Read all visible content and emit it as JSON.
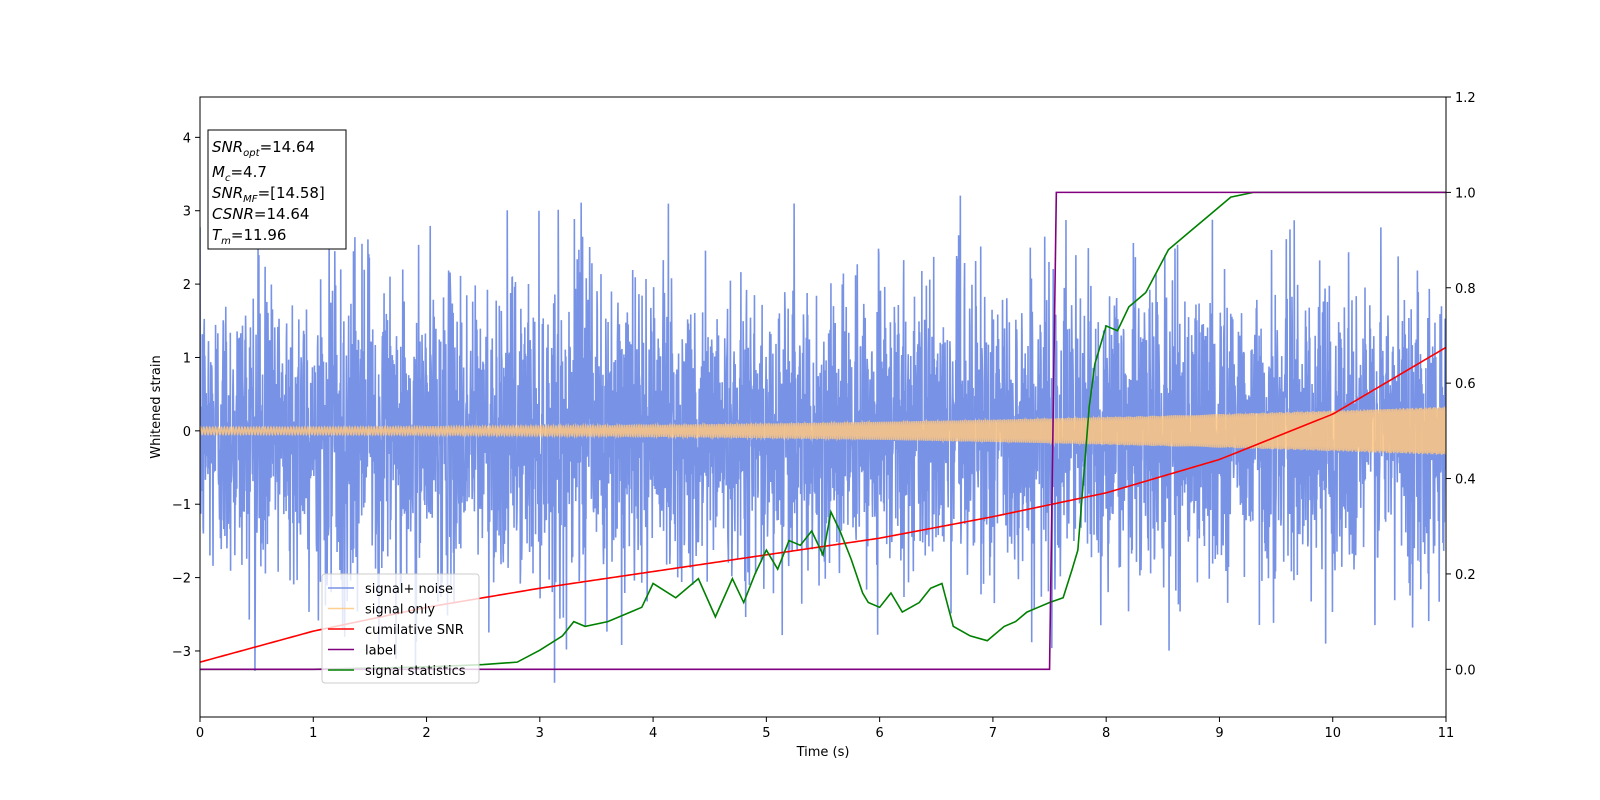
{
  "chart_data": {
    "type": "line",
    "xlabel": "Time (s)",
    "ylabel": "Whitened strain",
    "xlim": [
      0,
      11
    ],
    "ylim_left": [
      -3.9,
      4.55
    ],
    "ylim_right": [
      -0.1,
      1.2
    ],
    "x_ticks": [
      "0",
      "1",
      "2",
      "3",
      "4",
      "5",
      "6",
      "7",
      "8",
      "9",
      "10",
      "11"
    ],
    "y_ticks_left": [
      "−3",
      "−2",
      "−1",
      "0",
      "1",
      "2",
      "3",
      "4"
    ],
    "y_ticks_right": [
      "0.0",
      "0.2",
      "0.4",
      "0.6",
      "0.8",
      "1.0",
      "1.2"
    ],
    "grid": false,
    "legend_position": "lower-left",
    "annotation": [
      {
        "base": "SNR",
        "sub": "opt",
        "rest": "=14.64"
      },
      {
        "base": "M",
        "sub": "c",
        "rest": "=4.7"
      },
      {
        "base": "SNR",
        "sub": "MF",
        "rest": "=[14.58]"
      },
      {
        "base": "CSNR",
        "sub": "",
        "rest": "=14.64"
      },
      {
        "base": "T",
        "sub": "m",
        "rest": "=11.96"
      }
    ],
    "series": [
      {
        "name": "signal+ noise",
        "axis": "left",
        "color": "#7893e6",
        "description": "whitened noise, sigma about 1, range about -3.5 to 3.4"
      },
      {
        "name": "signal only",
        "axis": "left",
        "color": "#ffc77f",
        "amplitude_start": 0.05,
        "amplitude_end": 0.33
      },
      {
        "name": "cumilative SNR",
        "axis": "right",
        "color": "#ff0000",
        "x": [
          0,
          1,
          2,
          3,
          4,
          5,
          6,
          7,
          7.5,
          8,
          9,
          10,
          11
        ],
        "y": [
          0.015,
          0.08,
          0.13,
          0.17,
          0.205,
          0.24,
          0.275,
          0.32,
          0.345,
          0.37,
          0.44,
          0.535,
          0.675
        ]
      },
      {
        "name": "label",
        "axis": "right",
        "color": "#800080",
        "x": [
          0,
          7.5,
          7.56,
          11
        ],
        "y": [
          0.0,
          0.0,
          1.0,
          1.0
        ]
      },
      {
        "name": "signal statistics",
        "axis": "right",
        "color": "#008000",
        "x": [
          0,
          1,
          2,
          2.5,
          2.8,
          3,
          3.2,
          3.3,
          3.4,
          3.6,
          3.9,
          4.0,
          4.2,
          4.4,
          4.55,
          4.7,
          4.8,
          4.9,
          5.0,
          5.1,
          5.2,
          5.3,
          5.4,
          5.5,
          5.57,
          5.65,
          5.75,
          5.85,
          5.9,
          6.0,
          6.1,
          6.2,
          6.35,
          6.45,
          6.55,
          6.65,
          6.8,
          6.95,
          7.1,
          7.2,
          7.3,
          7.4,
          7.5,
          7.62,
          7.7,
          7.75,
          7.8,
          7.85,
          7.9,
          8.0,
          8.1,
          8.2,
          8.35,
          8.55,
          8.75,
          8.9,
          9.1,
          9.3,
          9.6,
          10.0,
          10.5,
          11.0
        ],
        "y": [
          0.0,
          0.0,
          0.005,
          0.01,
          0.015,
          0.04,
          0.07,
          0.1,
          0.09,
          0.1,
          0.13,
          0.18,
          0.15,
          0.19,
          0.11,
          0.19,
          0.14,
          0.2,
          0.25,
          0.21,
          0.27,
          0.26,
          0.29,
          0.24,
          0.33,
          0.29,
          0.23,
          0.16,
          0.14,
          0.13,
          0.16,
          0.12,
          0.14,
          0.17,
          0.18,
          0.09,
          0.07,
          0.06,
          0.09,
          0.1,
          0.12,
          0.13,
          0.14,
          0.15,
          0.21,
          0.25,
          0.4,
          0.55,
          0.64,
          0.72,
          0.71,
          0.76,
          0.79,
          0.88,
          0.92,
          0.95,
          0.99,
          1.0,
          1.0,
          1.0,
          1.0,
          1.0
        ]
      }
    ]
  }
}
